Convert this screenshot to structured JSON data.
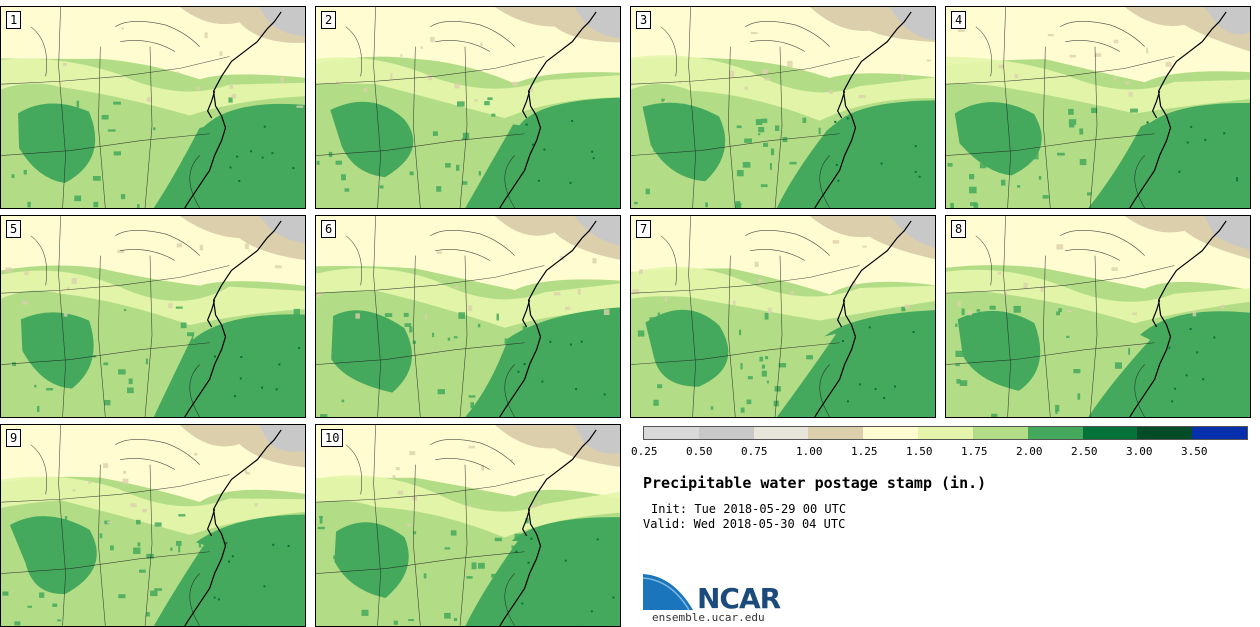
{
  "panels": [
    {
      "label": "1"
    },
    {
      "label": "2"
    },
    {
      "label": "3"
    },
    {
      "label": "4"
    },
    {
      "label": "5"
    },
    {
      "label": "6"
    },
    {
      "label": "7"
    },
    {
      "label": "8"
    },
    {
      "label": "9"
    },
    {
      "label": "10"
    }
  ],
  "colorbar": {
    "colors": [
      "#d9d9d9",
      "#c8c8c8",
      "#e8e6da",
      "#dccfac",
      "#fffcd1",
      "#e5f6ac",
      "#b2dd86",
      "#44a95c",
      "#04733a",
      "#034c28",
      "#062fab"
    ],
    "ticks": [
      "0.25",
      "0.50",
      "0.75",
      "1.00",
      "1.25",
      "1.50",
      "1.75",
      "2.00",
      "2.50",
      "3.00",
      "3.50"
    ]
  },
  "title": "Precipitable water postage stamp (in.)",
  "init": "Init: Tue 2018-05-29 00 UTC",
  "valid": "Valid: Wed 2018-05-30 04 UTC",
  "logo": {
    "text": "NCAR",
    "url": "ensemble.ucar.edu"
  }
}
